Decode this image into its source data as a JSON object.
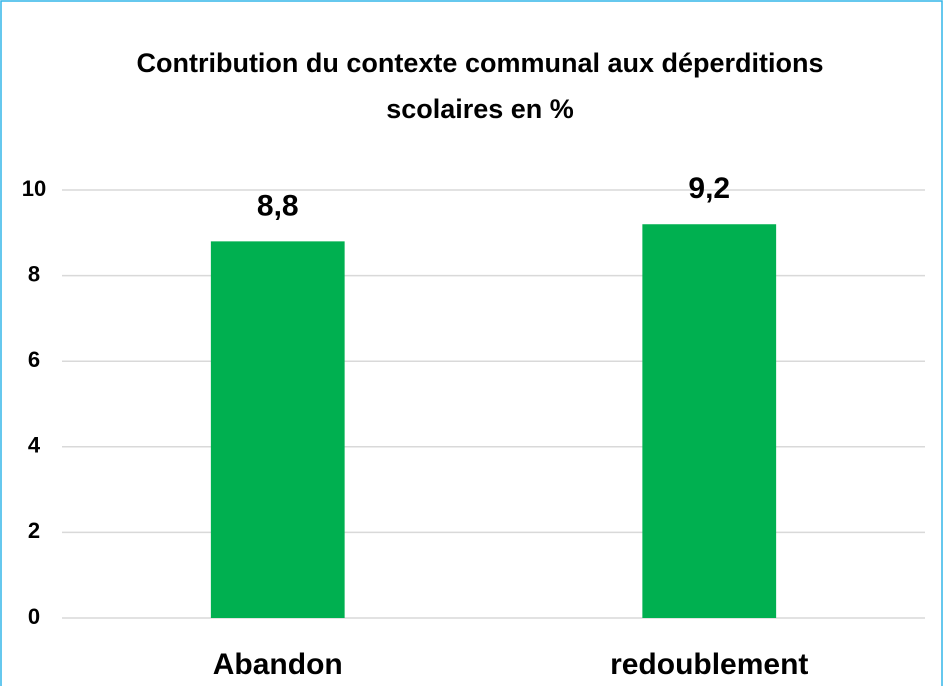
{
  "chart_data": {
    "type": "bar",
    "title": "Contribution du contexte communal aux déperditions scolaires en %",
    "categories": [
      "Abandon",
      "redoublement"
    ],
    "values": [
      8.8,
      9.2
    ],
    "value_labels": [
      "8,8",
      "9,2"
    ],
    "color": "#00b050",
    "ylim": [
      0,
      10
    ],
    "yticks": [
      0,
      2,
      4,
      6,
      8,
      10
    ],
    "grid": true
  }
}
